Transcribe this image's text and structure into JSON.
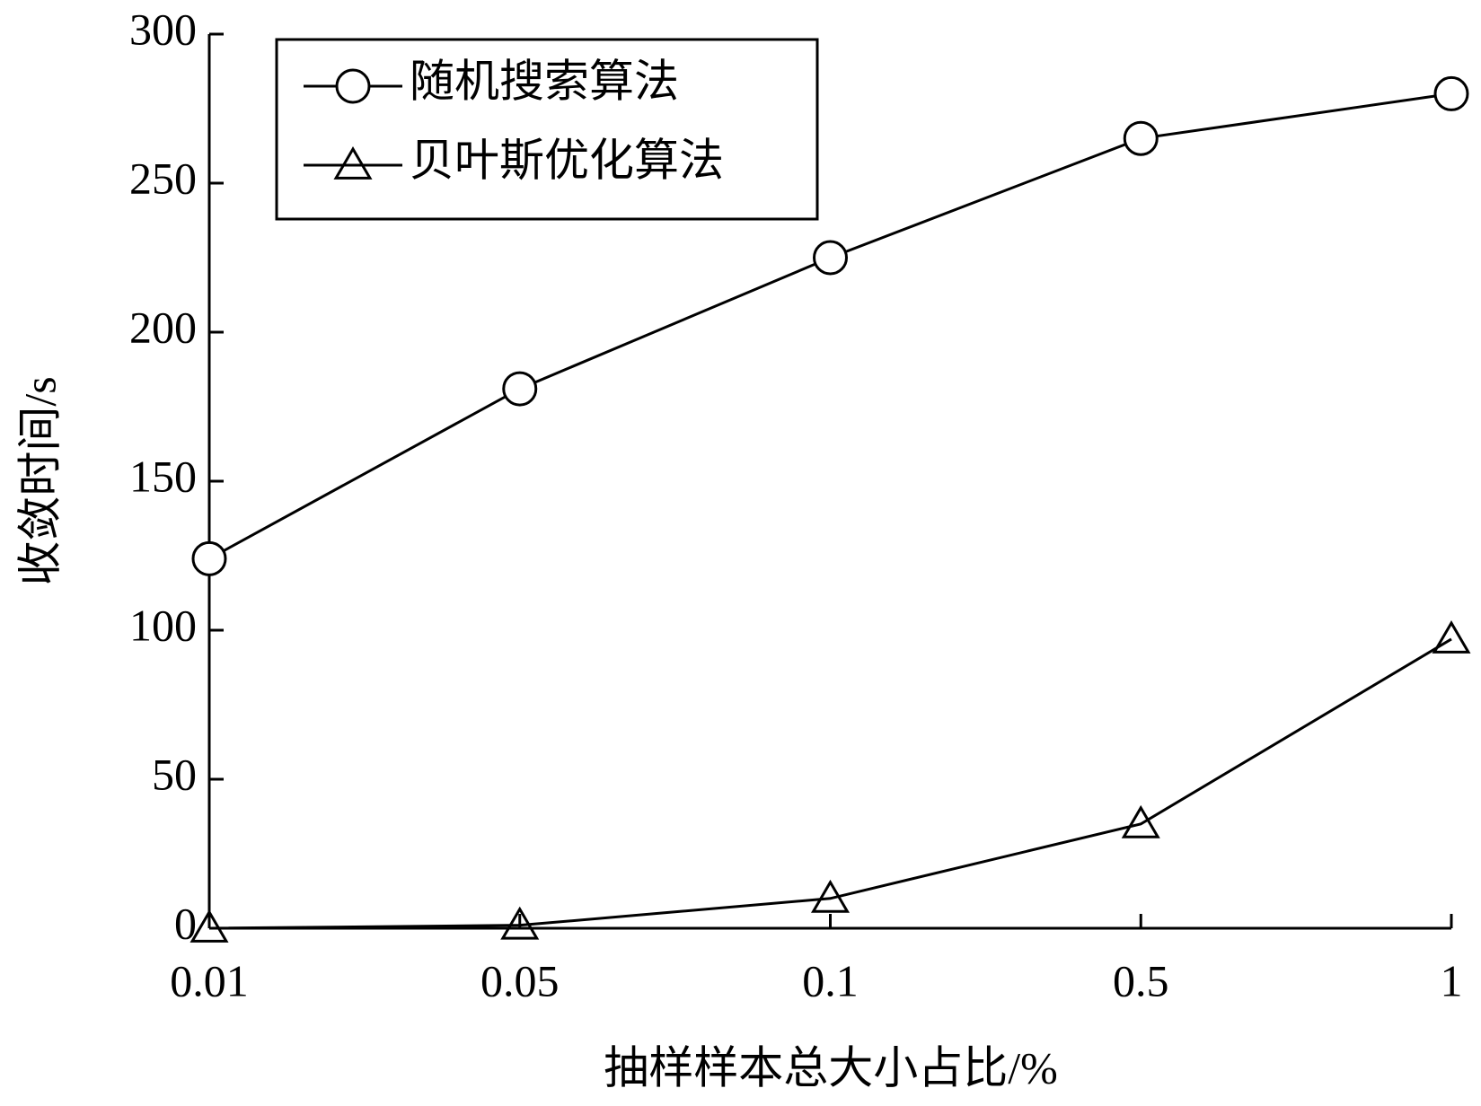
{
  "chart_data": {
    "type": "line",
    "x_label": "抽样样本总大小占比/%",
    "y_label": "收敛时间/s",
    "categories": [
      "0.01",
      "0.05",
      "0.1",
      "0.5",
      "1"
    ],
    "series": [
      {
        "name": "随机搜索算法",
        "color": "#000000",
        "marker": "circle",
        "values": [
          124,
          181,
          225,
          265,
          280
        ]
      },
      {
        "name": "贝叶斯优化算法",
        "color": "#000000",
        "marker": "triangle",
        "values": [
          0,
          1,
          10,
          35,
          97
        ]
      }
    ],
    "ylim": [
      0,
      300
    ],
    "yticks": [
      0,
      50,
      100,
      150,
      200,
      250,
      300
    ],
    "legend": "upper left",
    "grid": false
  }
}
